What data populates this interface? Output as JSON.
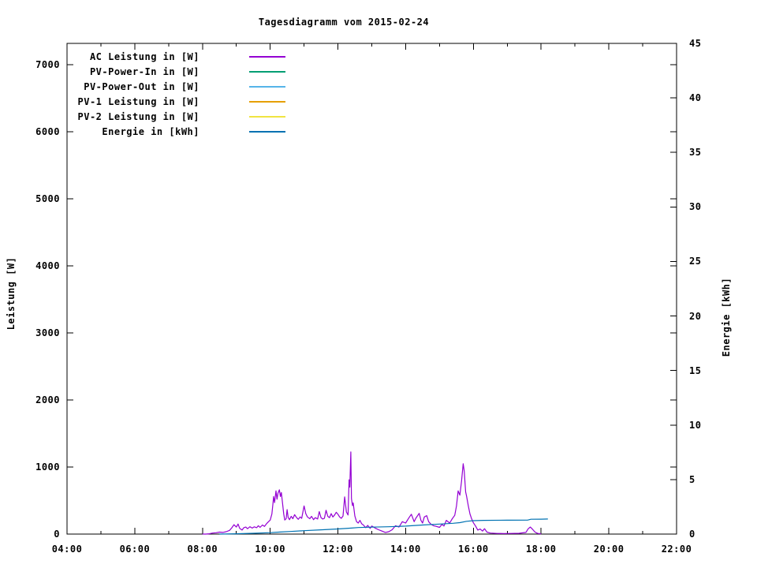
{
  "chart_data": {
    "type": "line",
    "title": "Tagesdiagramm vom 2015-02-24",
    "y1_label": "Leistung [W]",
    "y2_label": "Energie [kWh]",
    "x": {
      "min_hour": 4,
      "max_hour": 22,
      "major_tick_hours": [
        4,
        6,
        8,
        10,
        12,
        14,
        16,
        18,
        20,
        22
      ],
      "major_tick_labels": [
        "04:00",
        "06:00",
        "08:00",
        "10:00",
        "12:00",
        "14:00",
        "16:00",
        "18:00",
        "20:00",
        "22:00"
      ],
      "minor_step_hours": 1,
      "grid": false
    },
    "y1": {
      "min": 0,
      "max": 7318,
      "ticks": [
        0,
        1000,
        2000,
        3000,
        4000,
        5000,
        6000,
        7000
      ],
      "side": "left",
      "mirrored_on_right": true
    },
    "y2": {
      "min": 0,
      "max": 45,
      "ticks": [
        0,
        5,
        10,
        15,
        20,
        25,
        30,
        35,
        40,
        45
      ],
      "side": "right"
    },
    "legend_position": "top-left-inside",
    "series": [
      {
        "name": "AC Leistung in [W]",
        "color": "#9400d3",
        "axis": "y1",
        "points": [
          [
            8.0,
            0
          ],
          [
            8.1,
            0
          ],
          [
            8.2,
            5
          ],
          [
            8.3,
            15
          ],
          [
            8.4,
            20
          ],
          [
            8.5,
            30
          ],
          [
            8.6,
            25
          ],
          [
            8.7,
            35
          ],
          [
            8.8,
            55
          ],
          [
            8.87,
            95
          ],
          [
            8.93,
            140
          ],
          [
            9.0,
            105
          ],
          [
            9.05,
            150
          ],
          [
            9.1,
            85
          ],
          [
            9.17,
            60
          ],
          [
            9.22,
            95
          ],
          [
            9.28,
            105
          ],
          [
            9.33,
            80
          ],
          [
            9.4,
            110
          ],
          [
            9.47,
            90
          ],
          [
            9.53,
            108
          ],
          [
            9.6,
            95
          ],
          [
            9.65,
            125
          ],
          [
            9.7,
            100
          ],
          [
            9.77,
            135
          ],
          [
            9.83,
            115
          ],
          [
            9.9,
            160
          ],
          [
            9.95,
            185
          ],
          [
            10.0,
            210
          ],
          [
            10.05,
            300
          ],
          [
            10.08,
            450
          ],
          [
            10.1,
            560
          ],
          [
            10.13,
            470
          ],
          [
            10.17,
            645
          ],
          [
            10.2,
            520
          ],
          [
            10.23,
            610
          ],
          [
            10.27,
            660
          ],
          [
            10.3,
            560
          ],
          [
            10.33,
            620
          ],
          [
            10.37,
            430
          ],
          [
            10.4,
            300
          ],
          [
            10.43,
            210
          ],
          [
            10.47,
            230
          ],
          [
            10.5,
            365
          ],
          [
            10.53,
            250
          ],
          [
            10.57,
            215
          ],
          [
            10.62,
            265
          ],
          [
            10.67,
            230
          ],
          [
            10.72,
            290
          ],
          [
            10.78,
            245
          ],
          [
            10.83,
            220
          ],
          [
            10.88,
            255
          ],
          [
            10.93,
            235
          ],
          [
            11.0,
            420
          ],
          [
            11.05,
            305
          ],
          [
            11.1,
            255
          ],
          [
            11.17,
            230
          ],
          [
            11.22,
            265
          ],
          [
            11.28,
            215
          ],
          [
            11.33,
            245
          ],
          [
            11.4,
            225
          ],
          [
            11.45,
            335
          ],
          [
            11.5,
            245
          ],
          [
            11.55,
            225
          ],
          [
            11.6,
            235
          ],
          [
            11.65,
            355
          ],
          [
            11.7,
            265
          ],
          [
            11.75,
            245
          ],
          [
            11.8,
            305
          ],
          [
            11.85,
            255
          ],
          [
            11.9,
            285
          ],
          [
            11.95,
            325
          ],
          [
            12.0,
            295
          ],
          [
            12.05,
            255
          ],
          [
            12.1,
            235
          ],
          [
            12.15,
            270
          ],
          [
            12.2,
            555
          ],
          [
            12.25,
            330
          ],
          [
            12.3,
            285
          ],
          [
            12.33,
            810
          ],
          [
            12.35,
            700
          ],
          [
            12.38,
            1225
          ],
          [
            12.4,
            530
          ],
          [
            12.43,
            425
          ],
          [
            12.45,
            465
          ],
          [
            12.5,
            270
          ],
          [
            12.55,
            185
          ],
          [
            12.6,
            165
          ],
          [
            12.65,
            205
          ],
          [
            12.7,
            155
          ],
          [
            12.75,
            135
          ],
          [
            12.82,
            95
          ],
          [
            12.88,
            130
          ],
          [
            12.95,
            85
          ],
          [
            13.0,
            120
          ],
          [
            13.1,
            90
          ],
          [
            13.2,
            65
          ],
          [
            13.3,
            45
          ],
          [
            13.4,
            25
          ],
          [
            13.5,
            35
          ],
          [
            13.6,
            65
          ],
          [
            13.7,
            125
          ],
          [
            13.8,
            105
          ],
          [
            13.9,
            185
          ],
          [
            14.0,
            165
          ],
          [
            14.1,
            245
          ],
          [
            14.17,
            295
          ],
          [
            14.25,
            185
          ],
          [
            14.3,
            235
          ],
          [
            14.4,
            310
          ],
          [
            14.45,
            205
          ],
          [
            14.5,
            165
          ],
          [
            14.55,
            255
          ],
          [
            14.62,
            275
          ],
          [
            14.68,
            185
          ],
          [
            14.75,
            145
          ],
          [
            14.82,
            125
          ],
          [
            14.9,
            115
          ],
          [
            15.0,
            100
          ],
          [
            15.07,
            145
          ],
          [
            15.13,
            120
          ],
          [
            15.2,
            205
          ],
          [
            15.3,
            165
          ],
          [
            15.37,
            225
          ],
          [
            15.45,
            280
          ],
          [
            15.5,
            420
          ],
          [
            15.55,
            645
          ],
          [
            15.6,
            580
          ],
          [
            15.65,
            790
          ],
          [
            15.7,
            1050
          ],
          [
            15.73,
            940
          ],
          [
            15.77,
            630
          ],
          [
            15.8,
            565
          ],
          [
            15.85,
            420
          ],
          [
            15.9,
            300
          ],
          [
            15.95,
            225
          ],
          [
            16.0,
            170
          ],
          [
            16.07,
            115
          ],
          [
            16.13,
            60
          ],
          [
            16.2,
            75
          ],
          [
            16.27,
            45
          ],
          [
            16.33,
            80
          ],
          [
            16.4,
            30
          ],
          [
            16.5,
            15
          ],
          [
            16.7,
            10
          ],
          [
            16.9,
            8
          ],
          [
            17.1,
            10
          ],
          [
            17.35,
            12
          ],
          [
            17.55,
            25
          ],
          [
            17.62,
            80
          ],
          [
            17.68,
            105
          ],
          [
            17.75,
            70
          ],
          [
            17.82,
            30
          ],
          [
            17.9,
            10
          ],
          [
            18.0,
            5
          ]
        ]
      },
      {
        "name": "PV-Power-In in [W]",
        "color": "#009e73",
        "axis": "y1",
        "points": []
      },
      {
        "name": "PV-Power-Out in [W]",
        "color": "#56b4e9",
        "axis": "y1",
        "points": []
      },
      {
        "name": "PV-1 Leistung in [W]",
        "color": "#e69f00",
        "axis": "y1",
        "points": []
      },
      {
        "name": "PV-2 Leistung in [W]",
        "color": "#f0e442",
        "axis": "y1",
        "points": []
      },
      {
        "name": "Energie in [kWh]",
        "color": "#0072b2",
        "axis": "y2",
        "points": [
          [
            8.5,
            0
          ],
          [
            9.0,
            0.03
          ],
          [
            9.5,
            0.07
          ],
          [
            10.0,
            0.13
          ],
          [
            10.3,
            0.19
          ],
          [
            10.6,
            0.24
          ],
          [
            11.0,
            0.31
          ],
          [
            11.5,
            0.39
          ],
          [
            12.0,
            0.47
          ],
          [
            12.4,
            0.55
          ],
          [
            12.6,
            0.6
          ],
          [
            13.0,
            0.64
          ],
          [
            13.5,
            0.67
          ],
          [
            14.0,
            0.73
          ],
          [
            14.5,
            0.83
          ],
          [
            15.0,
            0.92
          ],
          [
            15.4,
            0.99
          ],
          [
            15.6,
            1.05
          ],
          [
            15.8,
            1.17
          ],
          [
            16.0,
            1.23
          ],
          [
            16.3,
            1.26
          ],
          [
            17.0,
            1.27
          ],
          [
            17.6,
            1.28
          ],
          [
            17.7,
            1.36
          ],
          [
            18.0,
            1.37
          ],
          [
            18.2,
            1.38
          ]
        ]
      }
    ],
    "colors": {
      "background": "#ffffff",
      "border": "#000000",
      "text": "#000000"
    }
  }
}
